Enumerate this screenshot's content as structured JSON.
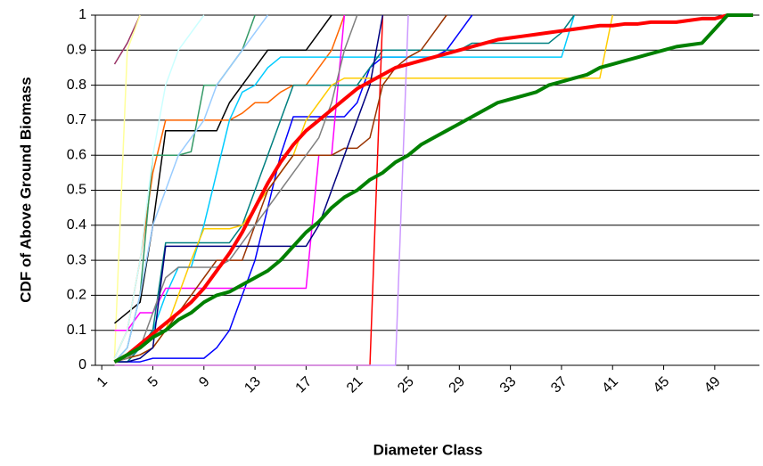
{
  "chart_data": {
    "type": "line",
    "ylabel": "CDF of Above Ground Biomass",
    "xlabel": "Diameter Class",
    "grid": true,
    "ylim": [
      0,
      1
    ],
    "yticks": [
      0,
      0.1,
      0.2,
      0.3,
      0.4,
      0.5,
      0.6,
      0.7,
      0.8,
      0.9,
      1
    ],
    "categories": [
      1,
      null,
      null,
      null,
      5,
      null,
      null,
      null,
      9,
      null,
      null,
      null,
      13,
      null,
      null,
      null,
      17,
      null,
      null,
      null,
      21,
      null,
      null,
      null,
      25,
      null,
      null,
      null,
      29,
      null,
      null,
      null,
      33,
      null,
      null,
      null,
      37,
      null,
      null,
      null,
      41,
      null,
      null,
      null,
      45,
      null,
      null,
      null,
      49,
      null,
      null,
      null
    ],
    "series": [
      {
        "color": "#993366",
        "linewidth": 1.5,
        "values": [
          null,
          0.86,
          0.92,
          1,
          null,
          null,
          null,
          null,
          null,
          null,
          null,
          null,
          null,
          null,
          null,
          null,
          null,
          null,
          null,
          null,
          null,
          null,
          null,
          null,
          null,
          null,
          null,
          null,
          null,
          null,
          null,
          null,
          null,
          null,
          null,
          null,
          null,
          null,
          null,
          null,
          null,
          null,
          null,
          null,
          null,
          null,
          null,
          null,
          null,
          null,
          null,
          null
        ]
      },
      {
        "color": "#ffff99",
        "linewidth": 1.5,
        "values": [
          null,
          0.02,
          0.9,
          1,
          null,
          null,
          null,
          null,
          null,
          null,
          null,
          null,
          null,
          null,
          null,
          null,
          null,
          null,
          null,
          null,
          null,
          null,
          null,
          null,
          null,
          null,
          null,
          null,
          null,
          null,
          null,
          null,
          null,
          null,
          null,
          null,
          null,
          null,
          null,
          null,
          null,
          null,
          null,
          null,
          null,
          null,
          null,
          null,
          null,
          null,
          null,
          null
        ]
      },
      {
        "color": "#000000",
        "linewidth": 1.5,
        "values": [
          null,
          0.12,
          0.15,
          0.18,
          0.4,
          0.67,
          0.67,
          0.67,
          0.67,
          0.67,
          0.75,
          0.8,
          0.85,
          0.9,
          0.9,
          0.9,
          0.9,
          0.95,
          1,
          null,
          null,
          null,
          null,
          null,
          null,
          null,
          null,
          null,
          null,
          null,
          null,
          null,
          null,
          null,
          null,
          null,
          null,
          null,
          null,
          null,
          null,
          null,
          null,
          null,
          null,
          null,
          null,
          null,
          null,
          null,
          null,
          null
        ]
      },
      {
        "color": "#ff6600",
        "linewidth": 1.5,
        "values": [
          null,
          0.02,
          0.1,
          0.3,
          0.55,
          0.7,
          0.7,
          0.7,
          0.7,
          0.7,
          0.7,
          0.72,
          0.75,
          0.75,
          0.78,
          0.8,
          0.8,
          0.85,
          0.9,
          1,
          null,
          null,
          null,
          null,
          null,
          null,
          null,
          null,
          null,
          null,
          null,
          null,
          null,
          null,
          null,
          null,
          null,
          null,
          null,
          null,
          null,
          null,
          null,
          null,
          null,
          null,
          null,
          null,
          null,
          null,
          null,
          null
        ]
      },
      {
        "color": "#339966",
        "linewidth": 1.5,
        "values": [
          null,
          0.01,
          0.05,
          0.2,
          0.6,
          0.6,
          0.6,
          0.61,
          0.8,
          0.8,
          0.85,
          0.9,
          1,
          null,
          null,
          null,
          null,
          null,
          null,
          null,
          null,
          null,
          null,
          null,
          null,
          null,
          null,
          null,
          null,
          null,
          null,
          null,
          null,
          null,
          null,
          null,
          null,
          null,
          null,
          null,
          null,
          null,
          null,
          null,
          null,
          null,
          null,
          null,
          null,
          null,
          null,
          null
        ]
      },
      {
        "color": "#0000ff",
        "linewidth": 1.5,
        "values": [
          null,
          0.01,
          0.01,
          0.01,
          0.02,
          0.02,
          0.02,
          0.02,
          0.02,
          0.05,
          0.1,
          0.2,
          0.3,
          0.45,
          0.6,
          0.71,
          0.71,
          0.71,
          0.71,
          0.71,
          0.75,
          0.85,
          0.88,
          0.88,
          0.88,
          0.88,
          0.88,
          0.9,
          0.95,
          1,
          null,
          null,
          null,
          null,
          null,
          null,
          null,
          null,
          null,
          null,
          null,
          null,
          null,
          null,
          null,
          null,
          null,
          null,
          null,
          null,
          null,
          null
        ]
      },
      {
        "color": "#00ccff",
        "linewidth": 1.5,
        "values": [
          null,
          0.01,
          0.01,
          0.05,
          0.1,
          0.2,
          0.28,
          0.28,
          0.4,
          0.55,
          0.7,
          0.78,
          0.8,
          0.85,
          0.88,
          0.88,
          0.88,
          0.88,
          0.88,
          0.88,
          0.88,
          0.88,
          0.88,
          0.88,
          0.88,
          0.88,
          0.88,
          0.88,
          0.88,
          0.88,
          0.88,
          0.88,
          0.88,
          0.88,
          0.88,
          0.88,
          0.88,
          1,
          null,
          null,
          null,
          null,
          null,
          null,
          null,
          null,
          null,
          null,
          null,
          null,
          null,
          null
        ]
      },
      {
        "color": "#ff00ff",
        "linewidth": 1.5,
        "values": [
          null,
          0.1,
          0.1,
          0.15,
          0.15,
          0.22,
          0.22,
          0.22,
          0.22,
          0.22,
          0.22,
          0.22,
          0.22,
          0.22,
          0.22,
          0.22,
          0.22,
          0.6,
          0.6,
          1,
          null,
          null,
          null,
          null,
          null,
          null,
          null,
          null,
          null,
          null,
          null,
          null,
          null,
          null,
          null,
          null,
          null,
          null,
          null,
          null,
          null,
          null,
          null,
          null,
          null,
          null,
          null,
          null,
          null,
          null,
          null,
          null
        ]
      },
      {
        "color": "#008080",
        "linewidth": 1.5,
        "values": [
          null,
          0.01,
          0.01,
          0.05,
          0.1,
          0.35,
          0.35,
          0.35,
          0.35,
          0.35,
          0.35,
          0.4,
          0.5,
          0.6,
          0.7,
          0.8,
          0.8,
          0.8,
          0.8,
          0.8,
          0.8,
          0.85,
          0.9,
          0.9,
          0.9,
          0.9,
          0.9,
          0.9,
          0.9,
          0.92,
          0.92,
          0.92,
          0.92,
          0.92,
          0.92,
          0.92,
          0.95,
          1,
          null,
          null,
          null,
          null,
          null,
          null,
          null,
          null,
          null,
          null,
          null,
          null,
          null,
          null
        ]
      },
      {
        "color": "#ffcc00",
        "linewidth": 1.5,
        "values": [
          null,
          0.01,
          0.02,
          0.03,
          0.05,
          0.1,
          0.2,
          0.3,
          0.39,
          0.39,
          0.39,
          0.4,
          0.45,
          0.5,
          0.55,
          0.6,
          0.7,
          0.75,
          0.8,
          0.82,
          0.82,
          0.82,
          0.82,
          0.82,
          0.82,
          0.82,
          0.82,
          0.82,
          0.82,
          0.82,
          0.82,
          0.82,
          0.82,
          0.82,
          0.82,
          0.82,
          0.82,
          0.82,
          0.82,
          0.82,
          1,
          null,
          null,
          null,
          null,
          null,
          null,
          null,
          null,
          null,
          null,
          null
        ]
      },
      {
        "color": "#ff0000",
        "linewidth": 1.5,
        "values": [
          null,
          0,
          0,
          0,
          0,
          0,
          0,
          0,
          0,
          0,
          0,
          0,
          0,
          0,
          0,
          0,
          0,
          0,
          0,
          0,
          0,
          0,
          1,
          null,
          null,
          null,
          null,
          null,
          null,
          null,
          null,
          null,
          null,
          null,
          null,
          null,
          null,
          null,
          null,
          null,
          null,
          null,
          null,
          null,
          null,
          null,
          null,
          null,
          null,
          null,
          null,
          null
        ]
      },
      {
        "color": "#cc99ff",
        "linewidth": 1.5,
        "values": [
          null,
          0,
          0,
          0,
          0,
          0,
          0,
          0,
          0,
          0,
          0,
          0,
          0,
          0,
          0,
          0,
          0,
          0,
          0,
          0,
          0,
          0,
          0,
          0,
          1,
          null,
          null,
          null,
          null,
          null,
          null,
          null,
          null,
          null,
          null,
          null,
          null,
          null,
          null,
          null,
          null,
          null,
          null,
          null,
          null,
          null,
          null,
          null,
          null,
          null,
          null,
          null
        ]
      },
      {
        "color": "#993300",
        "linewidth": 1.5,
        "values": [
          null,
          0.01,
          0.02,
          0.03,
          0.05,
          0.1,
          0.15,
          0.2,
          0.25,
          0.3,
          0.3,
          0.3,
          0.4,
          0.5,
          0.55,
          0.6,
          0.6,
          0.6,
          0.6,
          0.62,
          0.62,
          0.65,
          0.8,
          0.85,
          0.88,
          0.9,
          0.95,
          1,
          null,
          null,
          null,
          null,
          null,
          null,
          null,
          null,
          null,
          null,
          null,
          null,
          null,
          null,
          null,
          null,
          null,
          null,
          null,
          null,
          null,
          null,
          null,
          null
        ]
      },
      {
        "color": "#808080",
        "linewidth": 1.5,
        "values": [
          null,
          0.01,
          0.02,
          0.05,
          0.15,
          0.25,
          0.28,
          0.28,
          0.28,
          0.28,
          0.3,
          0.35,
          0.4,
          0.45,
          0.5,
          0.55,
          0.6,
          0.65,
          0.75,
          0.9,
          1,
          null,
          null,
          null,
          null,
          null,
          null,
          null,
          null,
          null,
          null,
          null,
          null,
          null,
          null,
          null,
          null,
          null,
          null,
          null,
          null,
          null,
          null,
          null,
          null,
          null,
          null,
          null,
          null,
          null,
          null,
          null
        ]
      },
      {
        "color": "#99ccff",
        "linewidth": 1.5,
        "values": [
          null,
          0.01,
          0.05,
          0.2,
          0.4,
          0.5,
          0.6,
          0.65,
          0.7,
          0.8,
          0.85,
          0.9,
          0.95,
          1,
          null,
          null,
          null,
          null,
          null,
          null,
          null,
          null,
          null,
          null,
          null,
          null,
          null,
          null,
          null,
          null,
          null,
          null,
          null,
          null,
          null,
          null,
          null,
          null,
          null,
          null,
          null,
          null,
          null,
          null,
          null,
          null,
          null,
          null,
          null,
          null,
          null,
          null
        ]
      },
      {
        "color": "#ccffff",
        "linewidth": 1.5,
        "values": [
          null,
          0.02,
          0.1,
          0.3,
          0.6,
          0.8,
          0.9,
          0.95,
          1,
          null,
          null,
          null,
          null,
          null,
          null,
          null,
          null,
          null,
          null,
          null,
          null,
          null,
          null,
          null,
          null,
          null,
          null,
          null,
          null,
          null,
          null,
          null,
          null,
          null,
          null,
          null,
          null,
          null,
          null,
          null,
          null,
          null,
          null,
          null,
          null,
          null,
          null,
          null,
          null,
          null,
          null,
          null
        ]
      },
      {
        "color": "#000080",
        "linewidth": 1.5,
        "values": [
          null,
          0.01,
          0.01,
          0.02,
          0.05,
          0.34,
          0.34,
          0.34,
          0.34,
          0.34,
          0.34,
          0.34,
          0.34,
          0.34,
          0.34,
          0.34,
          0.34,
          0.4,
          0.5,
          0.6,
          0.7,
          0.8,
          1,
          null,
          null,
          null,
          null,
          null,
          null,
          null,
          null,
          null,
          null,
          null,
          null,
          null,
          null,
          null,
          null,
          null,
          null,
          null,
          null,
          null,
          null,
          null,
          null,
          null,
          null,
          null,
          null,
          null
        ]
      },
      {
        "color": "#ff0000",
        "linewidth": 4,
        "values": [
          null,
          0.01,
          0.03,
          0.06,
          0.09,
          0.12,
          0.15,
          0.18,
          0.22,
          0.27,
          0.32,
          0.38,
          0.45,
          0.52,
          0.58,
          0.63,
          0.67,
          0.7,
          0.73,
          0.76,
          0.79,
          0.81,
          0.83,
          0.85,
          0.86,
          0.87,
          0.88,
          0.89,
          0.9,
          0.91,
          0.92,
          0.93,
          0.935,
          0.94,
          0.945,
          0.95,
          0.955,
          0.96,
          0.965,
          0.97,
          0.97,
          0.975,
          0.975,
          0.98,
          0.98,
          0.98,
          0.985,
          0.99,
          0.99,
          1,
          1,
          1
        ]
      },
      {
        "color": "#008000",
        "linewidth": 4,
        "values": [
          null,
          0.01,
          0.03,
          0.05,
          0.08,
          0.1,
          0.13,
          0.15,
          0.18,
          0.2,
          0.21,
          0.23,
          0.25,
          0.27,
          0.3,
          0.34,
          0.38,
          0.41,
          0.45,
          0.48,
          0.5,
          0.53,
          0.55,
          0.58,
          0.6,
          0.63,
          0.65,
          0.67,
          0.69,
          0.71,
          0.73,
          0.75,
          0.76,
          0.77,
          0.78,
          0.8,
          0.81,
          0.82,
          0.83,
          0.85,
          0.86,
          0.87,
          0.88,
          0.89,
          0.9,
          0.91,
          0.915,
          0.92,
          0.96,
          1,
          1,
          1
        ]
      }
    ]
  }
}
